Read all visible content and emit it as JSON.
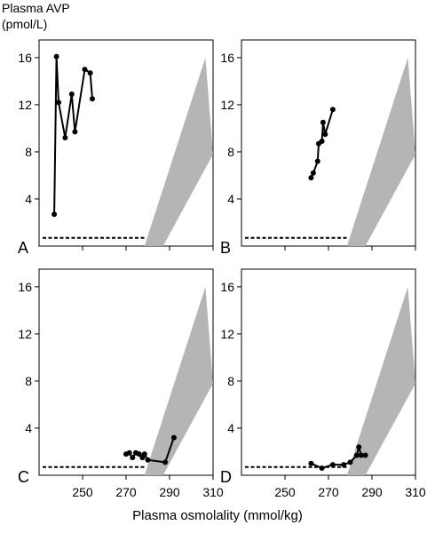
{
  "figure": {
    "ylabel_line1": "Plasma AVP",
    "ylabel_line2": "(pmol/L)",
    "xlabel": "Plasma  osmolality (mmol/kg)"
  },
  "chart_data": [
    {
      "type": "line",
      "panel_label": "A",
      "xlim": [
        230,
        310
      ],
      "ylim": [
        0,
        17.5
      ],
      "y_ticks": [
        4,
        8,
        12,
        16
      ],
      "x_ticks": [
        250,
        270,
        290,
        310
      ],
      "show_x_tick_labels": false,
      "grid": false,
      "threshold": {
        "osmolality_end": 278.5,
        "avp": 0.7,
        "style": "dashed"
      },
      "normal_range": {
        "lower": [
          [
            287,
            0
          ],
          [
            310,
            7.8
          ]
        ],
        "upper": [
          [
            278.5,
            0
          ],
          [
            306.5,
            16
          ]
        ]
      },
      "points": [
        [
          237,
          2.7
        ],
        [
          238,
          16.1
        ],
        [
          239,
          12.2
        ],
        [
          242,
          9.2
        ],
        [
          245,
          12.9
        ],
        [
          246.5,
          9.7
        ],
        [
          251,
          15
        ],
        [
          253.5,
          14.7
        ],
        [
          254.5,
          12.5
        ]
      ]
    },
    {
      "type": "line",
      "panel_label": "B",
      "xlim": [
        230,
        310
      ],
      "ylim": [
        0,
        17.5
      ],
      "y_ticks": [
        4,
        8,
        12,
        16
      ],
      "x_ticks": [
        250,
        270,
        290,
        310
      ],
      "show_x_tick_labels": false,
      "grid": false,
      "threshold": {
        "osmolality_end": 278.5,
        "avp": 0.7,
        "style": "dashed"
      },
      "normal_range": {
        "lower": [
          [
            287,
            0
          ],
          [
            310,
            7.8
          ]
        ],
        "upper": [
          [
            278.5,
            0
          ],
          [
            306.5,
            16
          ]
        ]
      },
      "points": [
        [
          262,
          5.8
        ],
        [
          263,
          6.2
        ],
        [
          265,
          7.2
        ],
        [
          265.5,
          8.7
        ],
        [
          267,
          8.9
        ],
        [
          267.5,
          10.5
        ],
        [
          268.5,
          9.5
        ],
        [
          272,
          11.6
        ]
      ]
    },
    {
      "type": "line",
      "panel_label": "C",
      "xlim": [
        230,
        310
      ],
      "ylim": [
        0,
        17.5
      ],
      "y_ticks": [
        4,
        8,
        12,
        16
      ],
      "x_ticks": [
        250,
        270,
        290,
        310
      ],
      "show_x_tick_labels": true,
      "grid": false,
      "threshold": {
        "osmolality_end": 278.5,
        "avp": 0.7,
        "style": "dashed"
      },
      "normal_range": {
        "lower": [
          [
            287,
            0
          ],
          [
            310,
            7.8
          ]
        ],
        "upper": [
          [
            278.5,
            0
          ],
          [
            306.5,
            16
          ]
        ]
      },
      "points": [
        [
          270,
          1.8
        ],
        [
          271.5,
          1.9
        ],
        [
          273,
          1.5
        ],
        [
          274.5,
          1.9
        ],
        [
          276,
          1.8
        ],
        [
          277.5,
          1.5
        ],
        [
          278.5,
          1.8
        ],
        [
          280,
          1.3
        ],
        [
          288,
          1.1
        ],
        [
          292,
          3.2
        ]
      ]
    },
    {
      "type": "line",
      "panel_label": "D",
      "xlim": [
        230,
        310
      ],
      "ylim": [
        0,
        17.5
      ],
      "y_ticks": [
        4,
        8,
        12,
        16
      ],
      "x_ticks": [
        250,
        270,
        290,
        310
      ],
      "show_x_tick_labels": true,
      "grid": false,
      "threshold": {
        "osmolality_end": 278.5,
        "avp": 0.7,
        "style": "dashed"
      },
      "normal_range": {
        "lower": [
          [
            287,
            0
          ],
          [
            310,
            7.8
          ]
        ],
        "upper": [
          [
            278.5,
            0
          ],
          [
            306.5,
            16
          ]
        ]
      },
      "points": [
        [
          262,
          1.0
        ],
        [
          267,
          0.6
        ],
        [
          272,
          0.9
        ],
        [
          277,
          0.9
        ],
        [
          280,
          1.1
        ],
        [
          283,
          1.7
        ],
        [
          284,
          2.4
        ],
        [
          285,
          1.7
        ],
        [
          287,
          1.7
        ]
      ]
    }
  ]
}
